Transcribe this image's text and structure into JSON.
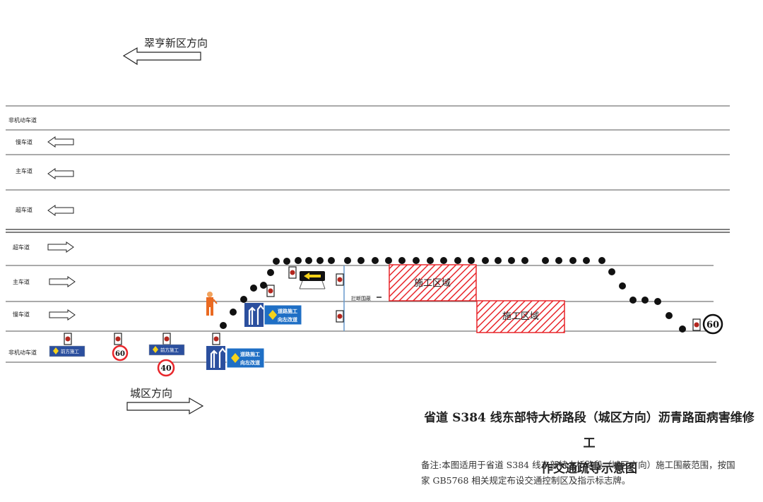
{
  "direction_top": "翠亨新区方向",
  "direction_bottom": "城区方向",
  "lanes": {
    "upper": [
      "非机动车道",
      "慢车道",
      "主车道",
      "超车道"
    ],
    "lower": [
      "超车道",
      "主车道",
      "慢车道",
      "非机动车道"
    ]
  },
  "work_zone_label": "施工区域",
  "barrier_label": "拦断围蔽",
  "speed_signs": [
    "60",
    "40",
    "60"
  ],
  "road_work_ahead_text": "前方施工",
  "detour_sign_text": [
    "道路施工",
    "向左改道"
  ],
  "colors": {
    "lane_line": "#555555",
    "work_zone": "#e8262b",
    "sign_blue": "#2b4f9e",
    "detour_blue": "#1f6fc5",
    "cone": "#111111"
  },
  "icons": [
    "arrow-left-icon",
    "arrow-right-icon",
    "cone-icon",
    "warning-light-icon",
    "flagman-icon",
    "arrow-board-icon",
    "speed-limit-icon",
    "lane-shift-icon",
    "road-work-sign-icon"
  ],
  "caption": {
    "title_line1": "省道 S384 线东部特大桥路段（城区方向）沥青路面病害维修工",
    "title_line2": "作交通疏导示意图",
    "note_line1": "备注:本图适用于省道 S384 线东部特大桥路段（城区方向）施工围蔽范围，按国",
    "note_line2": "家 GB5768 相关规定布设交通控制区及指示标志牌。"
  }
}
